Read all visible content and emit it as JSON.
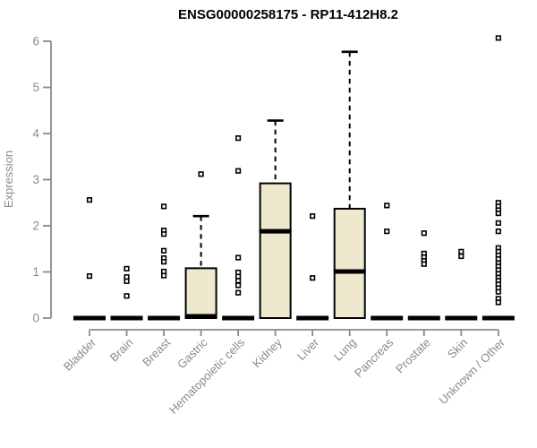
{
  "page": {
    "background": "#ffffff"
  },
  "chart_data": {
    "type": "boxplot",
    "title": "ENSG00000258175 - RP11-412H8.2",
    "ylabel": "Expression",
    "xlabel": "",
    "ylim": [
      0,
      6
    ],
    "yticks": [
      0,
      1,
      2,
      3,
      4,
      5,
      6
    ],
    "grid": false,
    "legend": "none",
    "categories": [
      "Bladder",
      "Brain",
      "Breast",
      "Gastric",
      "Hematopoietic cells",
      "Kidney",
      "Liver",
      "Lung",
      "Pancreas",
      "Prostate",
      "Skin",
      "Unknown / Other"
    ],
    "series": [
      {
        "category": "Bladder",
        "whisker_low": 0,
        "q1": 0,
        "median": 0,
        "q3": 0,
        "whisker_high": 0,
        "outliers": [
          2.56,
          0.91
        ]
      },
      {
        "category": "Brain",
        "whisker_low": 0,
        "q1": 0,
        "median": 0,
        "q3": 0,
        "whisker_high": 0,
        "outliers": [
          1.07,
          0.89,
          0.8,
          0.48
        ]
      },
      {
        "category": "Breast",
        "whisker_low": 0,
        "q1": 0,
        "median": 0,
        "q3": 0,
        "whisker_high": 0,
        "outliers": [
          2.42,
          1.9,
          1.82,
          1.46,
          1.3,
          1.22,
          1.01,
          0.92
        ]
      },
      {
        "category": "Gastric",
        "whisker_low": 0,
        "q1": 0,
        "median": 0.04,
        "q3": 1.08,
        "whisker_high": 2.21,
        "outliers": [
          3.12
        ]
      },
      {
        "category": "Hematopoietic cells",
        "whisker_low": 0,
        "q1": 0,
        "median": 0,
        "q3": 0,
        "whisker_high": 0,
        "outliers": [
          3.9,
          3.19,
          1.31,
          0.99,
          0.9,
          0.81,
          0.71,
          0.55
        ]
      },
      {
        "category": "Kidney",
        "whisker_low": 0,
        "q1": 0,
        "median": 1.88,
        "q3": 2.92,
        "whisker_high": 4.28,
        "outliers": []
      },
      {
        "category": "Liver",
        "whisker_low": 0,
        "q1": 0,
        "median": 0,
        "q3": 0,
        "whisker_high": 0,
        "outliers": [
          2.21,
          0.87
        ]
      },
      {
        "category": "Lung",
        "whisker_low": 0,
        "q1": 0,
        "median": 1.01,
        "q3": 2.37,
        "whisker_high": 5.77,
        "outliers": []
      },
      {
        "category": "Pancreas",
        "whisker_low": 0,
        "q1": 0,
        "median": 0,
        "q3": 0,
        "whisker_high": 0,
        "outliers": [
          2.44,
          1.88
        ]
      },
      {
        "category": "Prostate",
        "whisker_low": 0,
        "q1": 0,
        "median": 0,
        "q3": 0,
        "whisker_high": 0,
        "outliers": [
          1.84,
          1.4,
          1.32,
          1.24,
          1.17
        ]
      },
      {
        "category": "Skin",
        "whisker_low": 0,
        "q1": 0,
        "median": 0,
        "q3": 0,
        "whisker_high": 0,
        "outliers": [
          1.44,
          1.34
        ]
      },
      {
        "category": "Unknown / Other",
        "whisker_low": 0,
        "q1": 0,
        "median": 0,
        "q3": 0,
        "whisker_high": 0,
        "outliers": [
          6.07,
          2.5,
          2.42,
          2.34,
          2.27,
          2.06,
          1.88,
          1.52,
          1.44,
          1.36,
          1.28,
          1.19,
          1.12,
          1.04,
          0.96,
          0.88,
          0.81,
          0.73,
          0.65,
          0.57,
          0.42,
          0.34
        ]
      }
    ],
    "colors": {
      "box_fill": "#EDE8CE",
      "box_stroke": "#000000",
      "median": "#000000",
      "whisker": "#000000",
      "outlier_fill": "#FFFFFF",
      "outlier_stroke": "#000000",
      "axis": "#8A8A8A",
      "tick_label": "#8A8A8A",
      "title": "#000000"
    }
  }
}
